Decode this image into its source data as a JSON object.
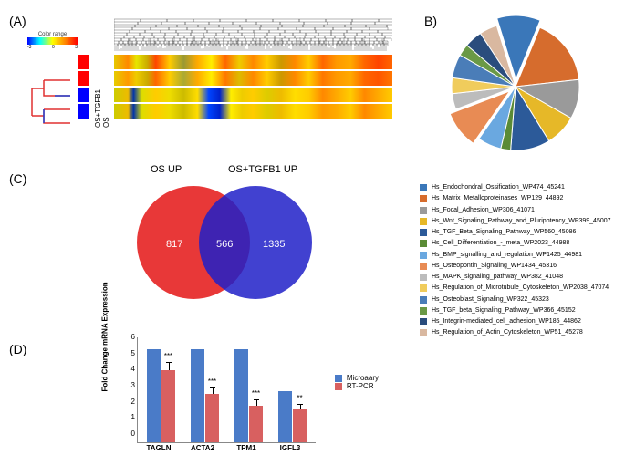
{
  "panels": {
    "a": "(A)",
    "b": "B)",
    "c": "(C)",
    "d": "(D)"
  },
  "panel_a": {
    "color_scale_label": "Color range",
    "color_scale_min": "-3",
    "color_scale_mid": "0",
    "color_scale_max": "3",
    "row_groups": [
      "OS",
      "OS+TGFB1"
    ],
    "row_bar_colors": [
      "#ff0000",
      "#ff0000",
      "#0000ff",
      "#0000ff"
    ],
    "heatmap_gradients": [
      "linear-gradient(90deg,#e6c800 0%,#ff8800 5%,#e6e600 8%,#ccaa00 12%,#ff4400 15%,#ffcc00 20%,#999933 25%,#ffaa00 30%,#ffee00 35%,#ff6600 40%,#eecc00 45%,#ff8800 50%,#ffcc00 55%,#cc9900 60%,#ff8800 65%,#ffcc00 70%,#ff6600 75%,#ff9900 80%,#ffaa00 85%,#ff6600 90%,#ff4400 95%,#ff6600 100%)",
      "linear-gradient(90deg,#e6cc00 0%,#ff9900 5%,#eecc00 8%,#ccaa00 12%,#ff6600 15%,#ffcc00 20%,#aaaa33 25%,#ffaa00 30%,#ffee00 35%,#ff7700 40%,#ddbb00 45%,#ff8800 50%,#ffcc00 55%,#cc9900 60%,#ff8800 65%,#ffcc00 70%,#ff7700 75%,#ff9900 80%,#ffaa00 85%,#ff6600 90%,#ff5500 95%,#ff7700 100%)",
      "linear-gradient(90deg,#cccc00 0%,#eebb00 5%,#0033aa 7%,#dddd00 10%,#ffcc00 15%,#eedd00 20%,#ccbb00 25%,#ffdd00 30%,#0044ff 34%,#0022cc 38%,#ffee00 42%,#eecc00 46%,#ffcc00 50%,#ddcc00 55%,#eebb00 60%,#ffdd00 65%,#ffcc00 70%,#ff8800 75%,#ffaa00 80%,#ffcc00 85%,#ff8800 90%,#ffaa00 95%,#ffcc00 100%)",
      "linear-gradient(90deg,#cccc00 0%,#eebb00 5%,#0033aa 7%,#dddd00 10%,#ffcc00 15%,#eedd00 20%,#ccbb00 25%,#ffdd00 30%,#0044ff 34%,#0022cc 38%,#ffee00 42%,#eecc00 46%,#ffcc00 50%,#ddcc00 55%,#eebb00 60%,#ffdd00 65%,#ffcc00 70%,#ff9900 75%,#ffaa00 80%,#ffcc00 85%,#ff8800 90%,#ffaa00 95%,#ffcc00 100%)"
    ]
  },
  "panel_b": {
    "pie_slices": [
      {
        "color": "#3a77b9",
        "value": 11
      },
      {
        "color": "#d66c2d",
        "value": 17
      },
      {
        "color": "#9a9a9a",
        "value": 10
      },
      {
        "color": "#e6b828",
        "value": 8
      },
      {
        "color": "#2c5a99",
        "value": 10
      },
      {
        "color": "#5a8b36",
        "value": 2.5
      },
      {
        "color": "#6aa8e0",
        "value": 6
      },
      {
        "color": "#e88b54",
        "value": 9.5
      },
      {
        "color": "#bcbcbc",
        "value": 4
      },
      {
        "color": "#f0cc5c",
        "value": 4
      },
      {
        "color": "#4a7db8",
        "value": 6
      },
      {
        "color": "#6a9946",
        "value": 3
      },
      {
        "color": "#2a4d7d",
        "value": 4.5
      },
      {
        "color": "#d9b8a0",
        "value": 4.5
      }
    ],
    "legend": [
      {
        "color": "#3a77b9",
        "label": "Hs_Endochondral_Ossification_WP474_45241"
      },
      {
        "color": "#d66c2d",
        "label": "Hs_Matrix_Metalloproteinases_WP129_44892"
      },
      {
        "color": "#9a9a9a",
        "label": "Hs_Focal_Adhesion_WP306_41071"
      },
      {
        "color": "#e6b828",
        "label": "Hs_Wnt_Signaling_Pathway_and_Pluripotency_WP399_45007"
      },
      {
        "color": "#2c5a99",
        "label": "Hs_TGF_Beta_Signaling_Pathway_WP560_45086"
      },
      {
        "color": "#5a8b36",
        "label": "Hs_Cell_Differentiation_-_meta_WP2023_44988"
      },
      {
        "color": "#6aa8e0",
        "label": "Hs_BMP_signalling_and_regulation_WP1425_44981"
      },
      {
        "color": "#e88b54",
        "label": "Hs_Osteopontin_Signaling_WP1434_45316"
      },
      {
        "color": "#bcbcbc",
        "label": "Hs_MAPK_signaling_pathway_WP382_41048"
      },
      {
        "color": "#f0cc5c",
        "label": "Hs_Regulation_of_Microtubule_Cytoskeleton_WP2038_47074"
      },
      {
        "color": "#4a7db8",
        "label": "Hs_Osteoblast_Signaling_WP322_45323"
      },
      {
        "color": "#6a9946",
        "label": "Hs_TGF_beta_Signaling_Pathway_WP366_45152"
      },
      {
        "color": "#2a4d7d",
        "label": "Hs_Integrin-mediated_cell_adhesion_WP185_44862"
      },
      {
        "color": "#d9b8a0",
        "label": "Hs_Regulation_of_Actin_Cytoskeleton_WP51_45278"
      }
    ]
  },
  "panel_c": {
    "left_label": "OS UP",
    "right_label": "OS+TGFB1 UP",
    "left_only": "817",
    "intersection": "566",
    "right_only": "1335",
    "left_color": "#e62222",
    "right_color": "#2020c8",
    "overlap_color": "#5a2050"
  },
  "panel_d": {
    "y_axis_label": "Fold Change mRNA Expression",
    "y_ticks": [
      "0",
      "1",
      "2",
      "3",
      "4",
      "5",
      "6"
    ],
    "y_max": 6,
    "categories": [
      "TAGLN",
      "ACTA2",
      "TPM1",
      "IGFL3"
    ],
    "series": [
      {
        "name": "Microaary",
        "color": "#4a7bc8"
      },
      {
        "name": "RT-PCR",
        "color": "#d86060"
      }
    ],
    "values": {
      "microarray": [
        5.3,
        5.3,
        5.3,
        2.9
      ],
      "rtpcr": [
        4.1,
        2.75,
        2.1,
        1.9
      ],
      "rtpcr_err": [
        0.5,
        0.4,
        0.35,
        0.3
      ],
      "sig": [
        "***",
        "***",
        "***",
        "**"
      ]
    }
  }
}
